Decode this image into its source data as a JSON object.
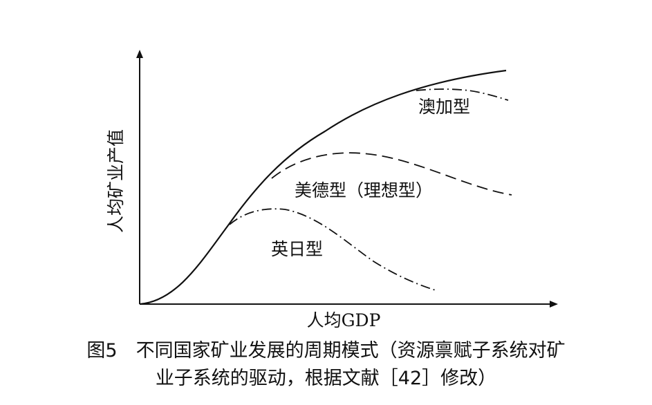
{
  "axes": {
    "x_label": "人均GDP",
    "y_label": "人均矿业产值"
  },
  "curves": [
    {
      "name": "澳加型",
      "style": "dash-dot"
    },
    {
      "name": "美德型（理想型）",
      "style": "dashed"
    },
    {
      "name": "英日型",
      "style": "dash-dot"
    }
  ],
  "caption": {
    "line1": "图5　不同国家矿业发展的周期模式（资源禀赋子系统对矿",
    "line2": "业子系统的驱动，根据文献［42］修改）"
  }
}
